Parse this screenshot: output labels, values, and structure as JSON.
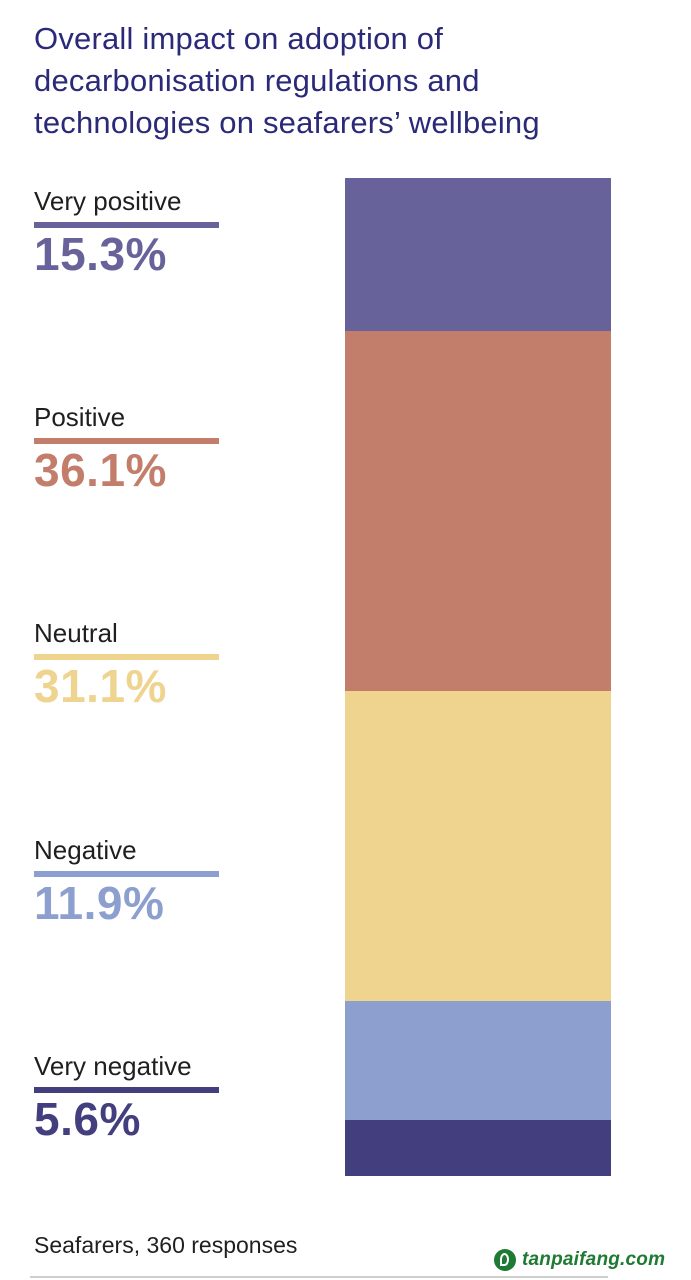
{
  "title_lines": [
    "Overall impact on adoption of",
    "decarbonisation regulations and",
    "technologies on seafarers’ wellbeing"
  ],
  "chart_data": {
    "type": "bar",
    "stacked": true,
    "title": "Overall impact on adoption of decarbonisation regulations and technologies on seafarers’ wellbeing",
    "unit": "%",
    "categories": [
      "Very positive",
      "Positive",
      "Neutral",
      "Negative",
      "Very negative"
    ],
    "values": [
      15.3,
      36.1,
      31.1,
      11.9,
      5.6
    ],
    "value_labels": [
      "15.3%",
      "36.1%",
      "31.1%",
      "11.9%",
      "5.6%"
    ],
    "colors": [
      "#67639a",
      "#c27e6b",
      "#efd48f",
      "#8c9fce",
      "#433f7e"
    ],
    "legend_placement": "left",
    "grid": false
  },
  "footer": "Seafarers, 360 responses",
  "watermark": "tanpaifang.com"
}
